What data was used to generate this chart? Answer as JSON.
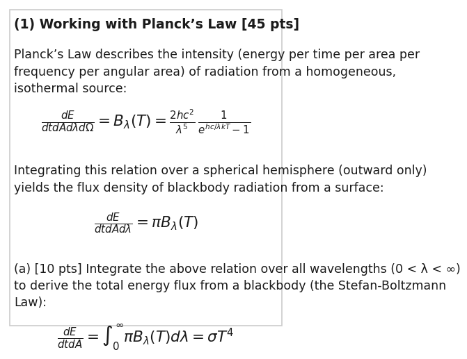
{
  "background_color": "#ffffff",
  "border_color": "#cccccc",
  "title_bold": "(1) Working with Planck’s Law [45 pts]",
  "para1": "Planck’s Law describes the intensity (energy per time per area per\nfrequency per angular area) of radiation from a homogeneous,\nisothermal source:",
  "eq1": "\\frac{dE}{dtdAd\\lambda d\\Omega} = B_{\\lambda}(T) = \\frac{2hc^2}{\\lambda^5} \\frac{1}{e^{hc/\\lambda kT}-1}",
  "para2": "Integrating this relation over a spherical hemisphere (outward only)\nyields the flux density of blackbody radiation from a surface:",
  "eq2": "\\frac{dE}{dtdAd\\lambda} = \\pi B_{\\lambda}(T)",
  "para3_a": "(a) [10 pts] Integrate the above relation over all wavelengths (0 < λ < ∞)\nto derive the total energy flux from a blackbody (the Stefan-Boltzmann\nLaw):",
  "eq3": "\\frac{dE}{dtdA} = \\int_0^{\\infty} \\pi B_{\\lambda}(T)d\\lambda = \\sigma T^4",
  "text_color": "#1a1a1a",
  "font_size_body": 12.5,
  "font_size_eq": 14,
  "font_size_title": 13.5
}
